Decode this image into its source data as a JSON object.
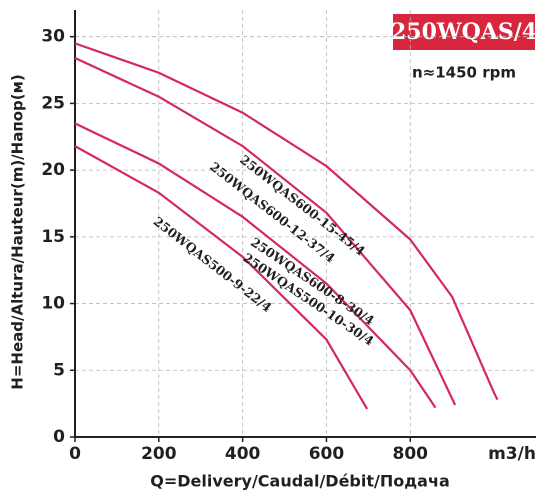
{
  "chart_data": {
    "type": "line",
    "title": "250WQAS/4",
    "subtitle": "n≈1450 rpm",
    "x_label": "Q=Delivery/Caudal/Débit/Подача",
    "x_unit": "m3/h",
    "y_label": "H=Head/Altura/Hauteur(m)/Напор(м)",
    "xlim": [
      0,
      1100
    ],
    "ylim": [
      0,
      32
    ],
    "xticks": [
      0,
      200,
      400,
      600,
      800
    ],
    "yticks": [
      0,
      5,
      10,
      15,
      20,
      25,
      30
    ],
    "grid": true,
    "color": "#d42a5b",
    "series": [
      {
        "name": "250WQAS600-15-45/4",
        "x": [
          0,
          200,
          400,
          600,
          800,
          900,
          1000,
          1008
        ],
        "values": [
          29.5,
          27.3,
          24.3,
          20.3,
          14.8,
          10.5,
          3.3,
          2.8
        ]
      },
      {
        "name": "250WQAS600-12-37/4",
        "x": [
          0,
          200,
          400,
          600,
          800,
          907
        ],
        "values": [
          28.4,
          25.5,
          21.8,
          16.8,
          9.5,
          2.4
        ]
      },
      {
        "name": "250WQAS600-8-30/4",
        "x": [
          0,
          200,
          400,
          600,
          800,
          860
        ],
        "values": [
          23.5,
          20.5,
          16.5,
          11.5,
          5,
          2.2
        ]
      },
      {
        "name": "250WQAS500-9-22/4",
        "x": [
          0,
          200,
          400,
          600,
          697
        ],
        "values": [
          21.8,
          18.3,
          13.5,
          7.3,
          2.1
        ]
      }
    ],
    "annotations": [
      "250WQAS500-10-30/4"
    ]
  }
}
